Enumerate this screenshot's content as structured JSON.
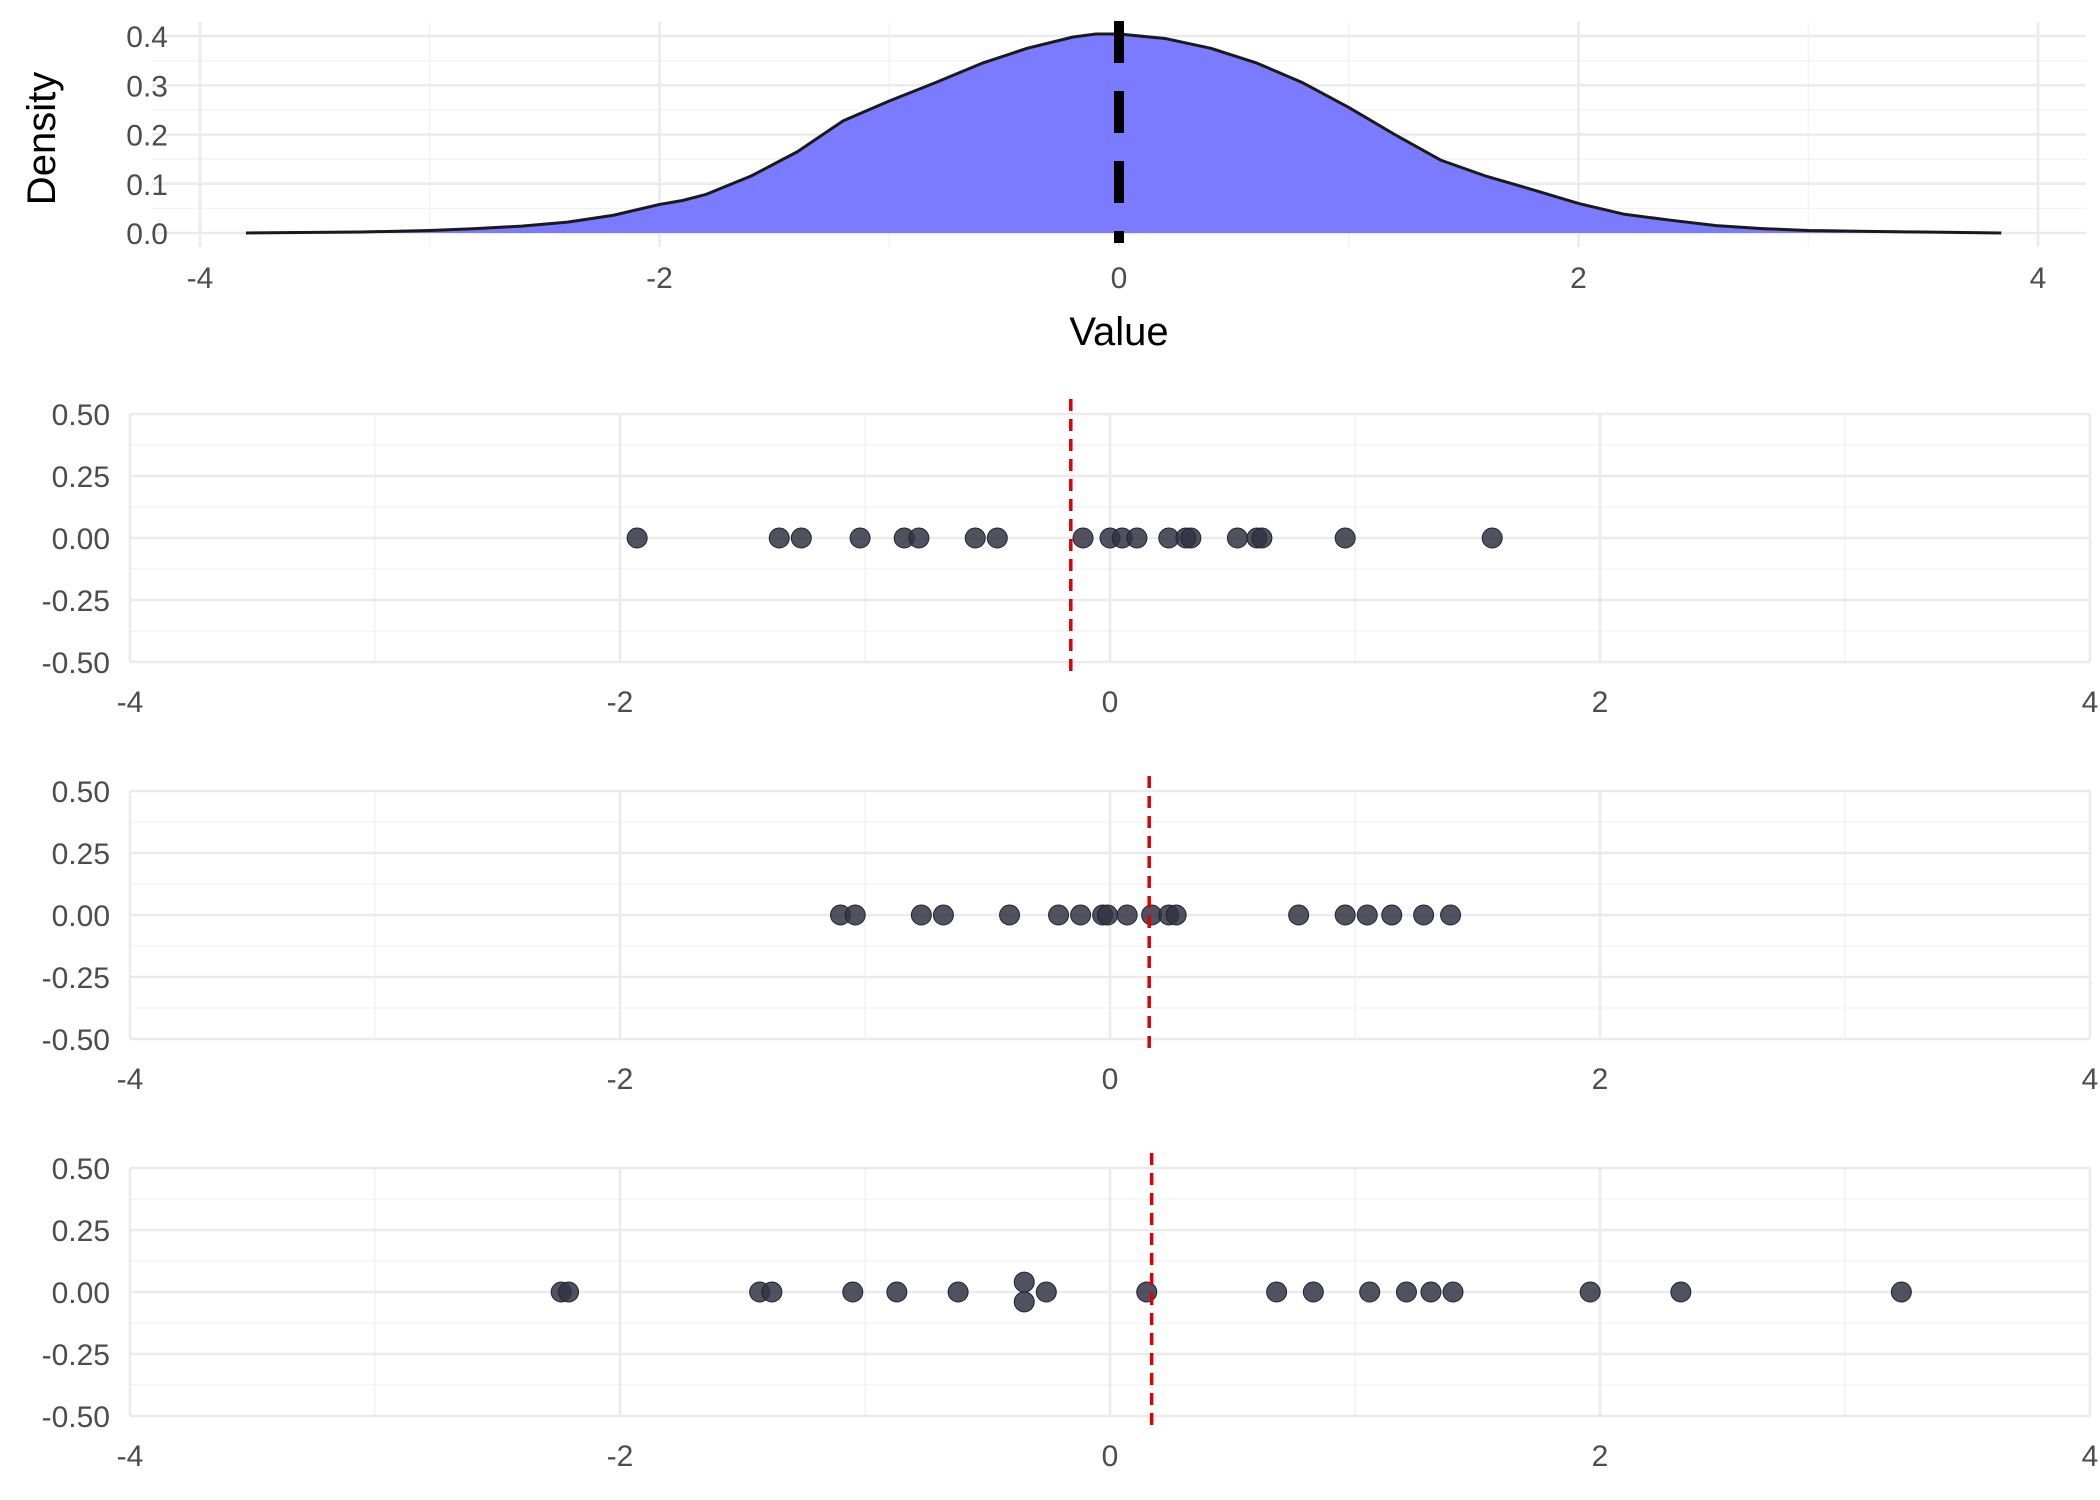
{
  "chart_data": [
    {
      "type": "area",
      "xlabel": "Value",
      "ylabel": "Density",
      "xlim": [
        -4,
        4
      ],
      "ylim": [
        0,
        0.4
      ],
      "x_ticks": [
        "-4",
        "-2",
        "0",
        "2",
        "4"
      ],
      "y_ticks": [
        "0.0",
        "0.1",
        "0.2",
        "0.3",
        "0.4"
      ],
      "fill_color": "#7b7bff",
      "line_color": "#1a1a1a",
      "grid": true,
      "reference_line": {
        "x": 0,
        "style": "dashed",
        "color": "#000000"
      },
      "x": [
        -3.8,
        -3.3,
        -3.0,
        -2.8,
        -2.6,
        -2.4,
        -2.2,
        -2.0,
        -1.9,
        -1.8,
        -1.6,
        -1.4,
        -1.2,
        -1.0,
        -0.8,
        -0.6,
        -0.4,
        -0.2,
        -0.1,
        0.0,
        0.2,
        0.4,
        0.6,
        0.8,
        1.0,
        1.2,
        1.4,
        1.6,
        1.8,
        2.0,
        2.2,
        2.4,
        2.6,
        2.8,
        3.0,
        3.3,
        3.5,
        3.84
      ],
      "y": [
        0.0,
        0.002,
        0.005,
        0.009,
        0.014,
        0.022,
        0.036,
        0.058,
        0.066,
        0.078,
        0.116,
        0.165,
        0.228,
        0.268,
        0.305,
        0.344,
        0.375,
        0.398,
        0.404,
        0.404,
        0.395,
        0.375,
        0.345,
        0.305,
        0.255,
        0.2,
        0.148,
        0.115,
        0.088,
        0.06,
        0.038,
        0.026,
        0.015,
        0.009,
        0.005,
        0.003,
        0.002,
        0.0
      ]
    },
    {
      "type": "scatter",
      "xlim": [
        -4,
        4
      ],
      "ylim": [
        -0.5,
        0.5
      ],
      "x_ticks": [
        "-4",
        "-2",
        "0",
        "2",
        "4"
      ],
      "y_ticks": [
        "0.50",
        "0.25",
        "0.00",
        "-0.25",
        "-0.50"
      ],
      "point_color": "#333344",
      "mean_line": {
        "x": -0.16,
        "style": "dashed",
        "color": "#e00000"
      },
      "points": [
        {
          "x": -1.93,
          "y": 0
        },
        {
          "x": -1.35,
          "y": 0
        },
        {
          "x": -1.26,
          "y": 0
        },
        {
          "x": -1.02,
          "y": 0
        },
        {
          "x": -0.84,
          "y": 0
        },
        {
          "x": -0.78,
          "y": 0
        },
        {
          "x": -0.55,
          "y": 0
        },
        {
          "x": -0.46,
          "y": 0
        },
        {
          "x": -0.11,
          "y": 0
        },
        {
          "x": 0.0,
          "y": 0
        },
        {
          "x": 0.05,
          "y": 0
        },
        {
          "x": 0.11,
          "y": 0
        },
        {
          "x": 0.24,
          "y": 0
        },
        {
          "x": 0.31,
          "y": 0
        },
        {
          "x": 0.33,
          "y": 0
        },
        {
          "x": 0.52,
          "y": 0
        },
        {
          "x": 0.6,
          "y": 0
        },
        {
          "x": 0.62,
          "y": 0
        },
        {
          "x": 0.96,
          "y": 0
        },
        {
          "x": 1.56,
          "y": 0
        }
      ]
    },
    {
      "type": "scatter",
      "xlim": [
        -4,
        4
      ],
      "ylim": [
        -0.5,
        0.5
      ],
      "x_ticks": [
        "-4",
        "-2",
        "0",
        "2",
        "4"
      ],
      "y_ticks": [
        "0.50",
        "0.25",
        "0.00",
        "-0.25",
        "-0.50"
      ],
      "point_color": "#333344",
      "mean_line": {
        "x": 0.16,
        "style": "dashed",
        "color": "#e00000"
      },
      "points": [
        {
          "x": -1.1,
          "y": 0
        },
        {
          "x": -1.04,
          "y": 0
        },
        {
          "x": -0.77,
          "y": 0
        },
        {
          "x": -0.68,
          "y": 0
        },
        {
          "x": -0.41,
          "y": 0
        },
        {
          "x": -0.21,
          "y": 0
        },
        {
          "x": -0.12,
          "y": 0
        },
        {
          "x": -0.03,
          "y": 0
        },
        {
          "x": -0.01,
          "y": 0
        },
        {
          "x": 0.07,
          "y": 0
        },
        {
          "x": 0.17,
          "y": 0
        },
        {
          "x": 0.24,
          "y": 0
        },
        {
          "x": 0.27,
          "y": 0
        },
        {
          "x": 0.77,
          "y": 0
        },
        {
          "x": 0.96,
          "y": 0
        },
        {
          "x": 1.05,
          "y": 0
        },
        {
          "x": 1.15,
          "y": 0
        },
        {
          "x": 1.28,
          "y": 0
        },
        {
          "x": 1.39,
          "y": 0
        }
      ]
    },
    {
      "type": "scatter",
      "xlim": [
        -4,
        4
      ],
      "ylim": [
        -0.5,
        0.5
      ],
      "x_ticks": [
        "-4",
        "-2",
        "0",
        "2",
        "4"
      ],
      "y_ticks": [
        "0.50",
        "0.25",
        "0.00",
        "-0.25",
        "-0.50"
      ],
      "point_color": "#333344",
      "mean_line": {
        "x": 0.17,
        "style": "dashed",
        "color": "#e00000"
      },
      "points": [
        {
          "x": -2.24,
          "y": 0
        },
        {
          "x": -2.21,
          "y": 0
        },
        {
          "x": -1.43,
          "y": 0
        },
        {
          "x": -1.38,
          "y": 0
        },
        {
          "x": -1.05,
          "y": 0
        },
        {
          "x": -0.87,
          "y": 0
        },
        {
          "x": -0.62,
          "y": 0
        },
        {
          "x": -0.35,
          "y": 0.04
        },
        {
          "x": -0.35,
          "y": -0.04
        },
        {
          "x": -0.26,
          "y": 0
        },
        {
          "x": 0.15,
          "y": 0
        },
        {
          "x": 0.68,
          "y": 0
        },
        {
          "x": 0.83,
          "y": 0
        },
        {
          "x": 1.06,
          "y": 0
        },
        {
          "x": 1.21,
          "y": 0
        },
        {
          "x": 1.31,
          "y": 0
        },
        {
          "x": 1.4,
          "y": 0
        },
        {
          "x": 1.96,
          "y": 0
        },
        {
          "x": 2.33,
          "y": 0
        },
        {
          "x": 3.23,
          "y": 0
        }
      ]
    }
  ]
}
